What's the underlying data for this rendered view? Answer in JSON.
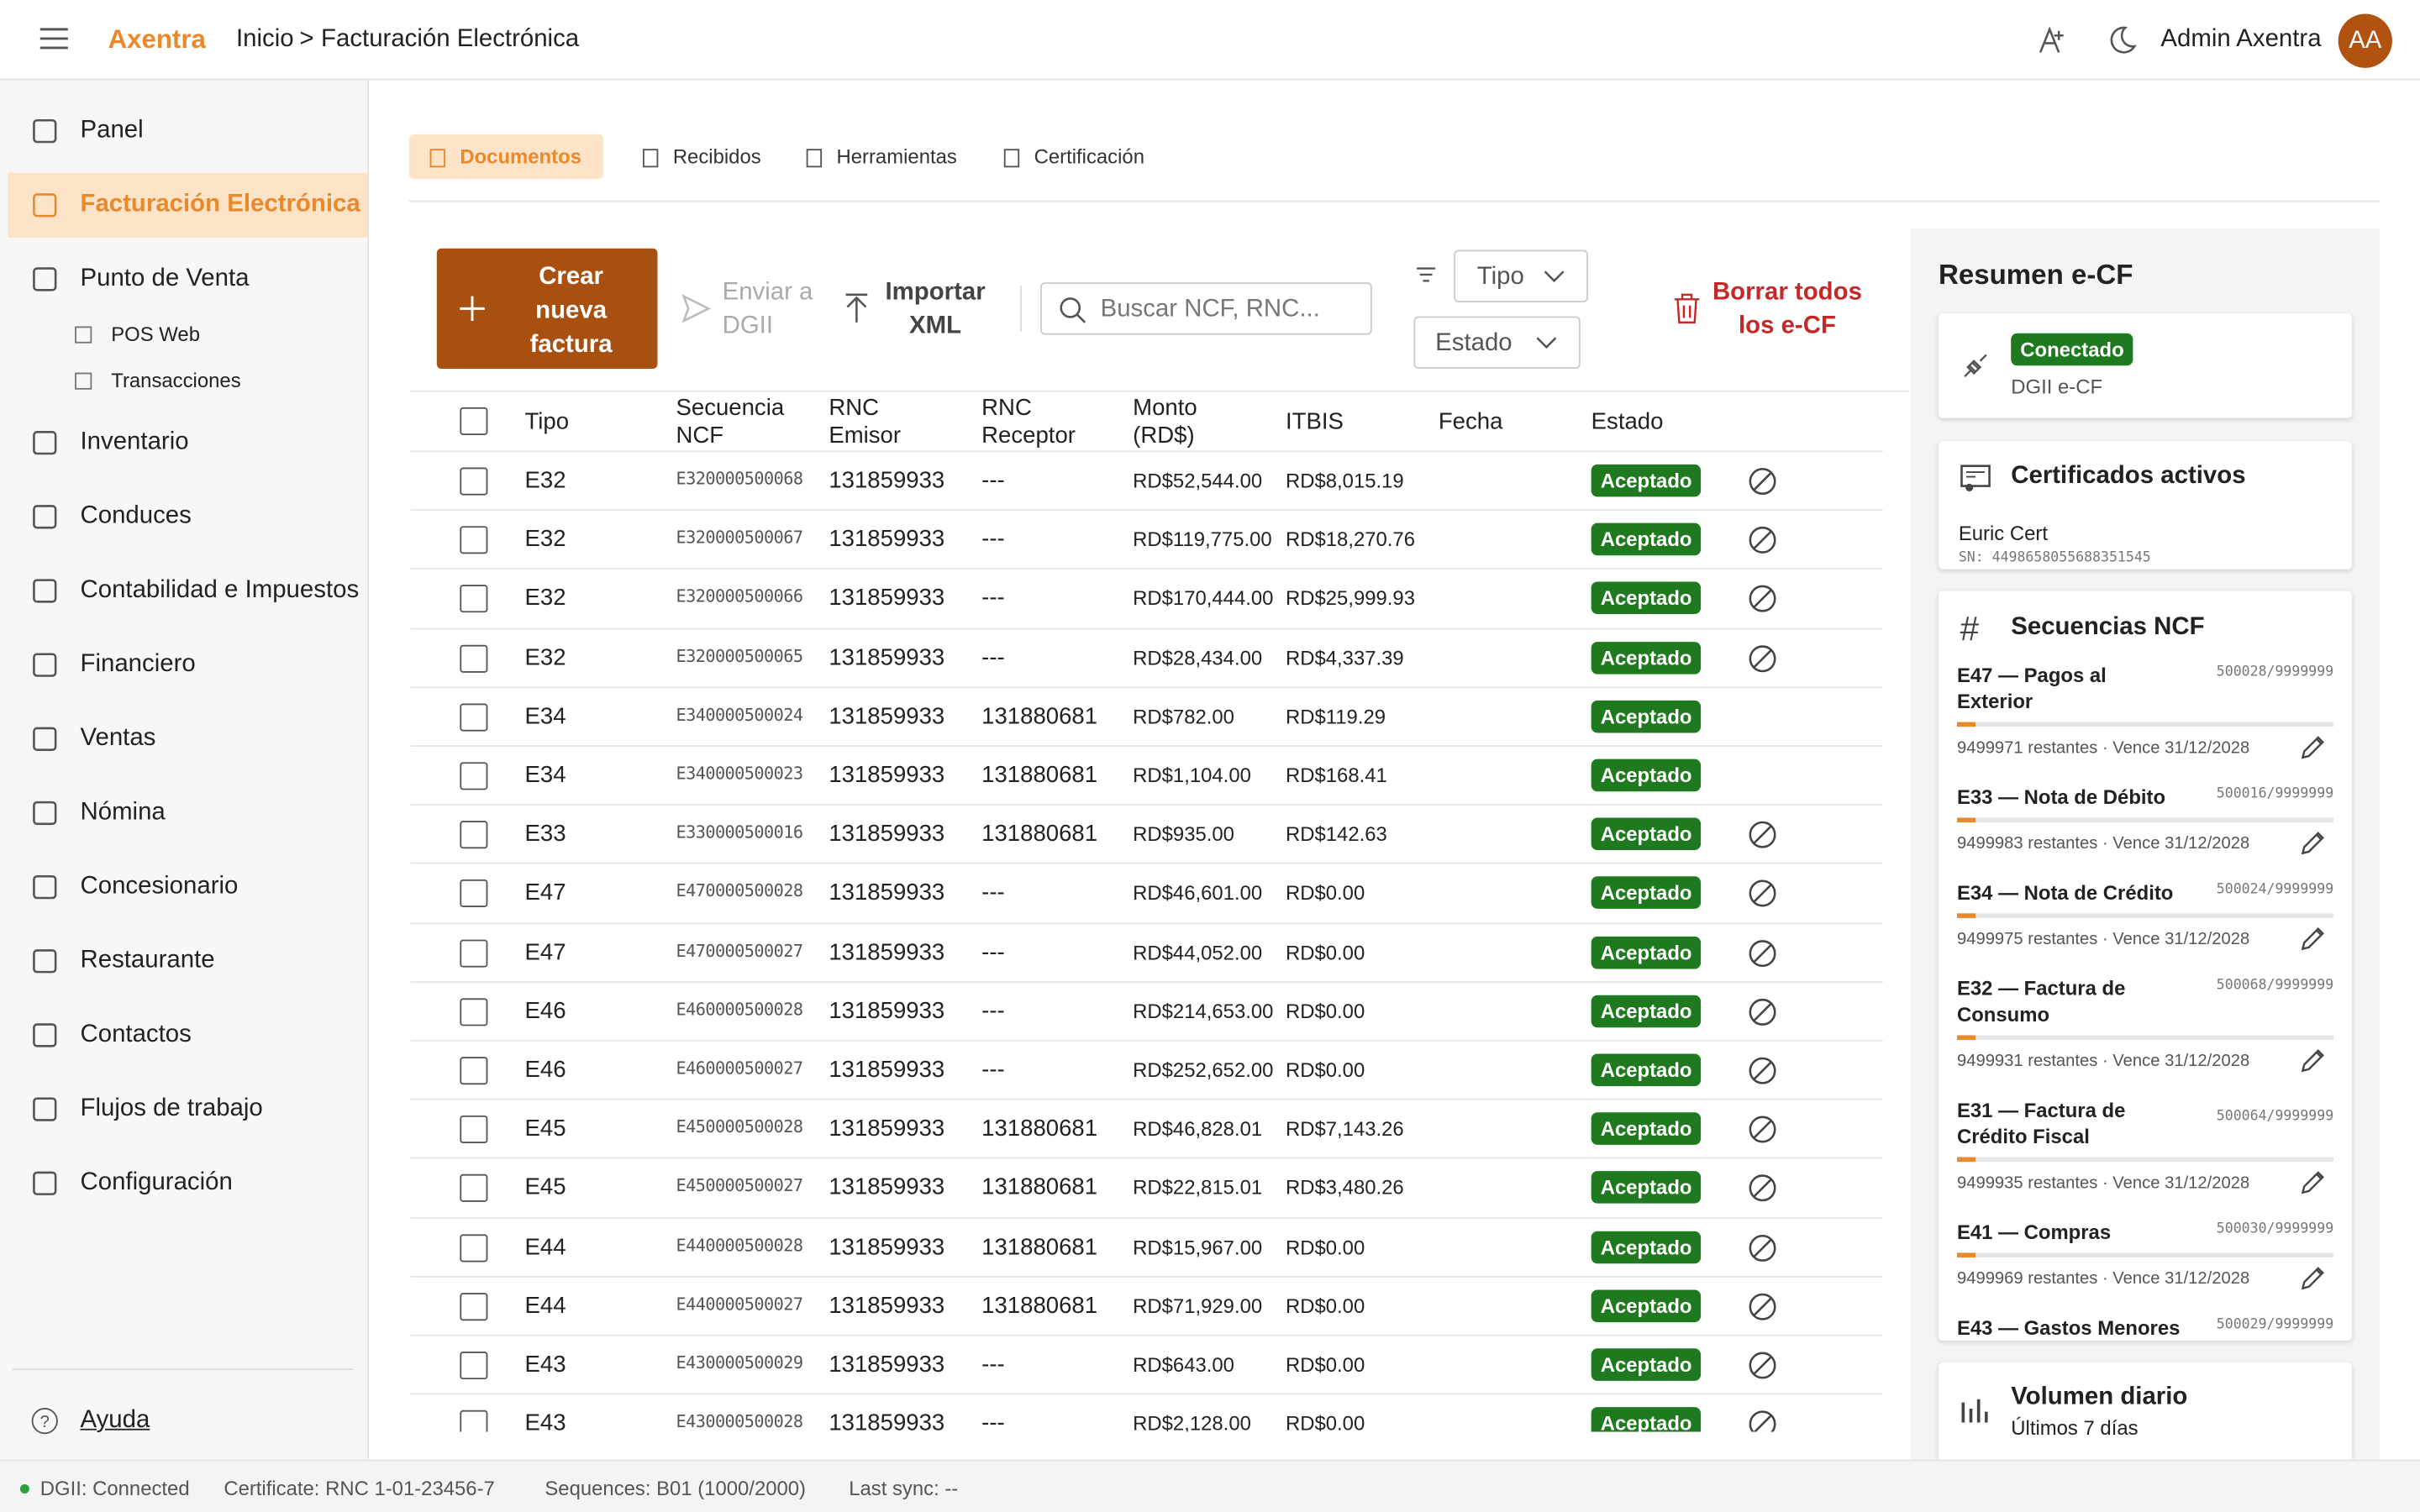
{
  "header": {
    "brand": "Axentra",
    "breadcrumb_home": "Inicio",
    "breadcrumb_sep": ">",
    "breadcrumb_current": "Facturación Electrónica",
    "user": "Admin Axentra",
    "avatar": "AA"
  },
  "sidebar": {
    "active": 1,
    "items": [
      {
        "label": "Panel"
      },
      {
        "label": "Facturación Electrónica"
      },
      {
        "label": "Punto de Venta",
        "children": [
          "POS Web",
          "Transacciones"
        ]
      },
      {
        "label": "Inventario"
      },
      {
        "label": "Conduces"
      },
      {
        "label": "Contabilidad e Impuestos"
      },
      {
        "label": "Financiero"
      },
      {
        "label": "Ventas"
      },
      {
        "label": "Nómina"
      },
      {
        "label": "Concesionario"
      },
      {
        "label": "Restaurante"
      },
      {
        "label": "Contactos"
      },
      {
        "label": "Flujos de trabajo"
      },
      {
        "label": "Configuración"
      }
    ],
    "help": "Ayuda"
  },
  "tabs": {
    "active": 0,
    "items": [
      "Documentos",
      "Recibidos",
      "Herramientas",
      "Certificación"
    ]
  },
  "toolbar": {
    "create": "Crear nueva factura",
    "send": "Enviar a DGII",
    "import": "Importar XML",
    "search_placeholder": "Buscar NCF, RNC...",
    "type_filter": "Tipo",
    "status_filter": "Estado",
    "delete_all": "Borrar todos los e-CF"
  },
  "table": {
    "columns": [
      "Tipo",
      "Secuencia NCF",
      "RNC Emisor",
      "RNC Receptor",
      "Monto (RD$)",
      "ITBIS",
      "Fecha",
      "Estado"
    ],
    "rows": [
      {
        "tipo": "E32",
        "ncf": "E320000500068",
        "emisor": "131859933",
        "receptor": "---",
        "monto": "RD$52,544.00",
        "itbis": "RD$8,015.19",
        "estado": "Aceptado",
        "cancel": true
      },
      {
        "tipo": "E32",
        "ncf": "E320000500067",
        "emisor": "131859933",
        "receptor": "---",
        "monto": "RD$119,775.00",
        "itbis": "RD$18,270.76",
        "estado": "Aceptado",
        "cancel": true
      },
      {
        "tipo": "E32",
        "ncf": "E320000500066",
        "emisor": "131859933",
        "receptor": "---",
        "monto": "RD$170,444.00",
        "itbis": "RD$25,999.93",
        "estado": "Aceptado",
        "cancel": true
      },
      {
        "tipo": "E32",
        "ncf": "E320000500065",
        "emisor": "131859933",
        "receptor": "---",
        "monto": "RD$28,434.00",
        "itbis": "RD$4,337.39",
        "estado": "Aceptado",
        "cancel": true
      },
      {
        "tipo": "E34",
        "ncf": "E340000500024",
        "emisor": "131859933",
        "receptor": "131880681",
        "monto": "RD$782.00",
        "itbis": "RD$119.29",
        "estado": "Aceptado",
        "cancel": false
      },
      {
        "tipo": "E34",
        "ncf": "E340000500023",
        "emisor": "131859933",
        "receptor": "131880681",
        "monto": "RD$1,104.00",
        "itbis": "RD$168.41",
        "estado": "Aceptado",
        "cancel": false
      },
      {
        "tipo": "E33",
        "ncf": "E330000500016",
        "emisor": "131859933",
        "receptor": "131880681",
        "monto": "RD$935.00",
        "itbis": "RD$142.63",
        "estado": "Aceptado",
        "cancel": true
      },
      {
        "tipo": "E47",
        "ncf": "E470000500028",
        "emisor": "131859933",
        "receptor": "---",
        "monto": "RD$46,601.00",
        "itbis": "RD$0.00",
        "estado": "Aceptado",
        "cancel": true
      },
      {
        "tipo": "E47",
        "ncf": "E470000500027",
        "emisor": "131859933",
        "receptor": "---",
        "monto": "RD$44,052.00",
        "itbis": "RD$0.00",
        "estado": "Aceptado",
        "cancel": true
      },
      {
        "tipo": "E46",
        "ncf": "E460000500028",
        "emisor": "131859933",
        "receptor": "---",
        "monto": "RD$214,653.00",
        "itbis": "RD$0.00",
        "estado": "Aceptado",
        "cancel": true
      },
      {
        "tipo": "E46",
        "ncf": "E460000500027",
        "emisor": "131859933",
        "receptor": "---",
        "monto": "RD$252,652.00",
        "itbis": "RD$0.00",
        "estado": "Aceptado",
        "cancel": true
      },
      {
        "tipo": "E45",
        "ncf": "E450000500028",
        "emisor": "131859933",
        "receptor": "131880681",
        "monto": "RD$46,828.01",
        "itbis": "RD$7,143.26",
        "estado": "Aceptado",
        "cancel": true
      },
      {
        "tipo": "E45",
        "ncf": "E450000500027",
        "emisor": "131859933",
        "receptor": "131880681",
        "monto": "RD$22,815.01",
        "itbis": "RD$3,480.26",
        "estado": "Aceptado",
        "cancel": true
      },
      {
        "tipo": "E44",
        "ncf": "E440000500028",
        "emisor": "131859933",
        "receptor": "131880681",
        "monto": "RD$15,967.00",
        "itbis": "RD$0.00",
        "estado": "Aceptado",
        "cancel": true
      },
      {
        "tipo": "E44",
        "ncf": "E440000500027",
        "emisor": "131859933",
        "receptor": "131880681",
        "monto": "RD$71,929.00",
        "itbis": "RD$0.00",
        "estado": "Aceptado",
        "cancel": true
      },
      {
        "tipo": "E43",
        "ncf": "E430000500029",
        "emisor": "131859933",
        "receptor": "---",
        "monto": "RD$643.00",
        "itbis": "RD$0.00",
        "estado": "Aceptado",
        "cancel": true
      },
      {
        "tipo": "E43",
        "ncf": "E430000500028",
        "emisor": "131859933",
        "receptor": "---",
        "monto": "RD$2,128.00",
        "itbis": "RD$0.00",
        "estado": "Aceptado",
        "cancel": true
      }
    ]
  },
  "summary": {
    "title": "Resumen e-CF",
    "connection": {
      "status": "Conectado",
      "label": "DGII e-CF"
    },
    "certificates": {
      "title": "Certificados activos",
      "name": "Euric Cert",
      "serial": "SN: 4498658055688351545"
    },
    "sequences": {
      "title": "Secuencias NCF",
      "items": [
        {
          "name": "E47 — Pagos al Exterior",
          "seq": "500028/9999999",
          "remaining": "9499971 restantes · Vence 31/12/2028"
        },
        {
          "name": "E33 — Nota de Débito",
          "seq": "500016/9999999",
          "remaining": "9499983 restantes · Vence 31/12/2028"
        },
        {
          "name": "E34 — Nota de Crédito",
          "seq": "500024/9999999",
          "remaining": "9499975 restantes · Vence 31/12/2028"
        },
        {
          "name": "E32 — Factura de Consumo",
          "seq": "500068/9999999",
          "remaining": "9499931 restantes · Vence 31/12/2028"
        },
        {
          "name": "E31 — Factura de Crédito Fiscal",
          "seq": "500064/9999999",
          "remaining": "9499935 restantes · Vence 31/12/2028"
        },
        {
          "name": "E41 — Compras",
          "seq": "500030/9999999",
          "remaining": "9499969 restantes · Vence 31/12/2028"
        },
        {
          "name": "E43 — Gastos Menores",
          "seq": "500029/9999999",
          "remaining": ""
        }
      ]
    },
    "volume": {
      "title": "Volumen diario",
      "subtitle": "Últimos 7 días"
    }
  },
  "status_bar": {
    "dgii": "DGII: Connected",
    "certificate": "Certificate: RNC 1-01-23456-7",
    "sequences": "Sequences: B01 (1000/2000)",
    "last_sync": "Last sync: --"
  }
}
